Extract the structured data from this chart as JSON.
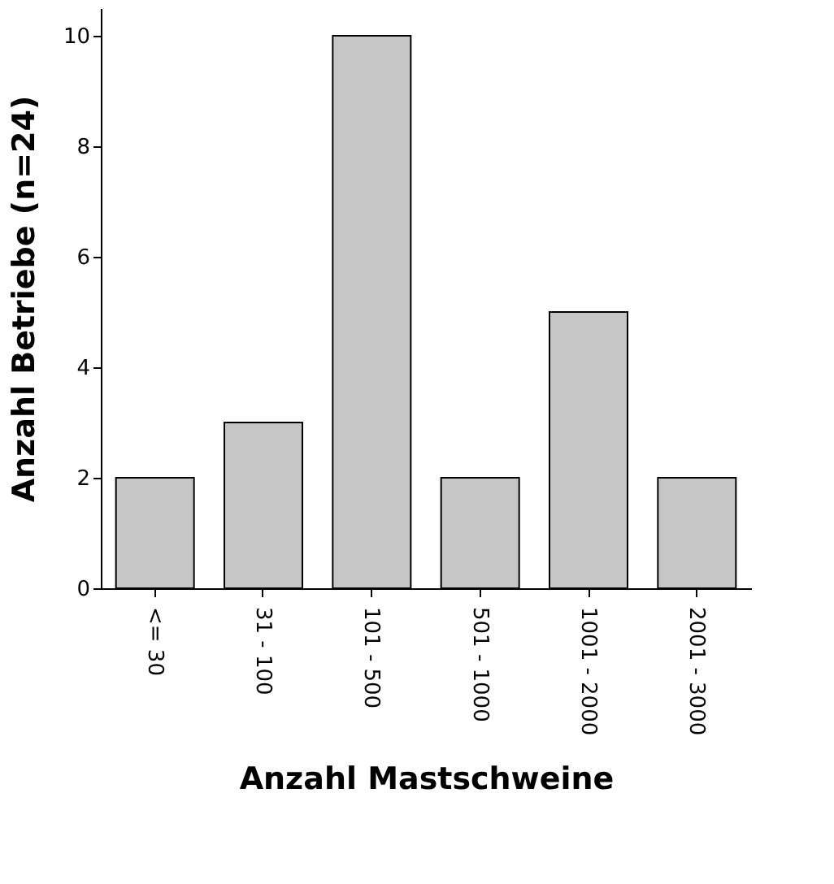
{
  "chart_data": {
    "type": "bar",
    "xlabel": "Anzahl Mastschweine",
    "ylabel": "Anzahl Betriebe (n=24)",
    "categories": [
      "<= 30",
      "31 - 100",
      "101 - 500",
      "501 - 1000",
      "1001 - 2000",
      "2001 - 3000"
    ],
    "values": [
      2,
      3,
      10,
      2,
      5,
      2
    ],
    "color": "#c6c6c6",
    "ylim": [
      0,
      10.5
    ],
    "yticks": [
      0,
      2,
      4,
      6,
      8,
      10
    ],
    "grid": false
  }
}
